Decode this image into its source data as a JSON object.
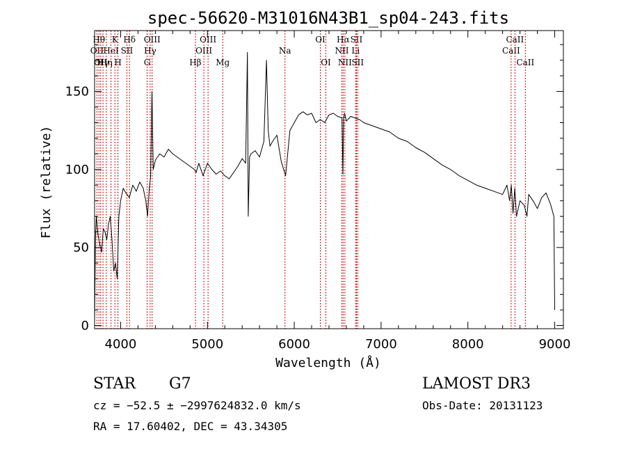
{
  "chart_data": {
    "type": "line",
    "title": "spec-56620-M31016N43B1_sp04-243.fits",
    "xlabel": "Wavelength (Å)",
    "ylabel": "Flux (relative)",
    "xlim": [
      3700,
      9100
    ],
    "ylim": [
      -2,
      189
    ],
    "xticks": [
      4000,
      5000,
      6000,
      7000,
      8000,
      9000
    ],
    "yticks": [
      0,
      50,
      100,
      150
    ],
    "grid": false,
    "series": [
      {
        "x": [
          3700,
          3710,
          3720,
          3740,
          3760,
          3780,
          3800,
          3820,
          3840,
          3860,
          3880,
          3900,
          3920,
          3940,
          3960,
          3980,
          4000,
          4030,
          4060,
          4100,
          4140,
          4180,
          4220,
          4260,
          4290,
          4310,
          4330,
          4345,
          4361,
          4375,
          4400,
          4450,
          4500,
          4550,
          4600,
          4650,
          4700,
          4750,
          4800,
          4850,
          4870,
          4900,
          4950,
          5000,
          5050,
          5100,
          5150,
          5200,
          5250,
          5300,
          5350,
          5400,
          5440,
          5460,
          5470,
          5485,
          5500,
          5550,
          5600,
          5650,
          5680,
          5700,
          5720,
          5750,
          5800,
          5850,
          5900,
          5950,
          6000,
          6050,
          6100,
          6150,
          6200,
          6250,
          6300,
          6350,
          6400,
          6450,
          6500,
          6550,
          6560,
          6565,
          6570,
          6580,
          6600,
          6650,
          6700,
          6750,
          6800,
          6900,
          7000,
          7100,
          7200,
          7300,
          7400,
          7500,
          7600,
          7700,
          7800,
          7900,
          8000,
          8100,
          8200,
          8300,
          8400,
          8450,
          8480,
          8500,
          8520,
          8540,
          8560,
          8600,
          8650,
          8680,
          8700,
          8750,
          8800,
          8850,
          8900,
          8950,
          8990,
          9000
        ],
        "values": [
          2,
          55,
          70,
          58,
          52,
          47,
          62,
          60,
          55,
          65,
          70,
          55,
          35,
          40,
          30,
          70,
          80,
          88,
          85,
          82,
          90,
          86,
          92,
          88,
          80,
          70,
          88,
          95,
          150,
          100,
          106,
          110,
          108,
          113,
          110,
          108,
          106,
          104,
          102,
          100,
          98,
          104,
          96,
          104,
          100,
          97,
          99,
          96,
          94,
          98,
          102,
          107,
          104,
          175,
          70,
          108,
          110,
          112,
          108,
          118,
          170,
          125,
          115,
          118,
          122,
          105,
          96,
          125,
          130,
          135,
          137,
          135,
          136,
          130,
          132,
          130,
          135,
          136,
          134,
          133,
          97,
          115,
          133,
          136,
          131,
          134,
          133,
          132,
          130,
          128,
          126,
          124,
          120,
          118,
          114,
          111,
          107,
          103,
          100,
          96,
          93,
          90,
          88,
          86,
          84,
          90,
          80,
          90,
          72,
          88,
          70,
          80,
          77,
          70,
          84,
          80,
          75,
          82,
          85,
          78,
          70,
          10
        ]
      }
    ],
    "line_markers": [
      {
        "x": 3727,
        "label": "OII",
        "row": 2
      },
      {
        "x": 3750,
        "label": "Hθ",
        "row": 1
      },
      {
        "x": 3770,
        "label": "OII",
        "row": 3
      },
      {
        "x": 3797,
        "label": "Hγ",
        "row": 3
      },
      {
        "x": 3835,
        "label": "Hη",
        "row": 3
      },
      {
        "x": 3889,
        "label": "HeI",
        "row": 2
      },
      {
        "x": 3934,
        "label": "K",
        "row": 1
      },
      {
        "x": 3969,
        "label": "H",
        "row": 3
      },
      {
        "x": 4072,
        "label": "SII",
        "row": 2
      },
      {
        "x": 4102,
        "label": "Hδ",
        "row": 1
      },
      {
        "x": 4305,
        "label": "G",
        "row": 3
      },
      {
        "x": 4340,
        "label": "Hγ",
        "row": 2
      },
      {
        "x": 4363,
        "label": "OIII",
        "row": 1
      },
      {
        "x": 4861,
        "label": "Hβ",
        "row": 3
      },
      {
        "x": 4959,
        "label": "OIII",
        "row": 2
      },
      {
        "x": 5007,
        "label": "OIII",
        "row": 1
      },
      {
        "x": 5176,
        "label": "Mg",
        "row": 3
      },
      {
        "x": 5893,
        "label": "Na",
        "row": 2
      },
      {
        "x": 6300,
        "label": "OI",
        "row": 1
      },
      {
        "x": 6364,
        "label": "OI",
        "row": 3
      },
      {
        "x": 6548,
        "label": "NII",
        "row": 2
      },
      {
        "x": 6563,
        "label": "Hα",
        "row": 1
      },
      {
        "x": 6583,
        "label": "NII",
        "row": 3
      },
      {
        "x": 6707,
        "label": "Li",
        "row": 2
      },
      {
        "x": 6716,
        "label": "SII",
        "row": 1
      },
      {
        "x": 6731,
        "label": "SII",
        "row": 3
      },
      {
        "x": 8498,
        "label": "CaII",
        "row": 2
      },
      {
        "x": 8542,
        "label": "CaII",
        "row": 1
      },
      {
        "x": 8662,
        "label": "CaII",
        "row": 3
      }
    ]
  },
  "info": {
    "class": "STAR",
    "subclass": "G7",
    "survey": "LAMOST DR3",
    "cz": "cz = −52.5 ± −2997624832.0 km/s",
    "obs_date": "Obs-Date: 20131123",
    "radec": "RA =  17.60402, DEC =  43.34305"
  }
}
